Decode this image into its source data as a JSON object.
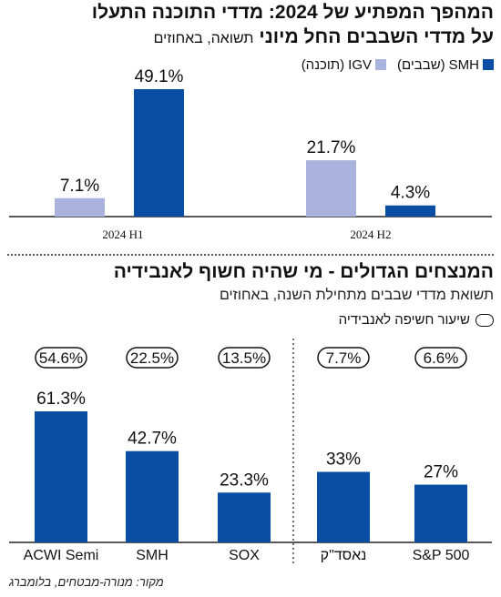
{
  "top": {
    "title": "המהפך המפתיע של 2024: מדדי התוכנה התעלו",
    "title2": "על מדדי השבבים החל מיוני",
    "subtitle": "תשואה, באחוזים",
    "legend": [
      {
        "name": "SMH",
        "note": "(שבבים)",
        "color": "#0a4ea3"
      },
      {
        "name": "IGV",
        "note": "(תוכנה)",
        "color": "#a9b3dd"
      }
    ]
  },
  "bottom": {
    "title": "המנצחים הגדולים - מי שהיה חשוף לאנבידיה",
    "subtitle": "תשואת מדדי שבבים מתחילת השנה, באחוזים",
    "benchmark_legend": "שיעור חשיפה לאנבידיה"
  },
  "source": "מקור: מנורה-מבטחים, בלומברג",
  "colors": {
    "smh": "#0a4ea3",
    "igv": "#a9b3dd",
    "axis": "#222222"
  },
  "chart_data": [
    {
      "type": "bar",
      "categories": [
        "2024 H1",
        "2024 H2"
      ],
      "series": [
        {
          "name": "IGV",
          "values": [
            7.1,
            21.7
          ],
          "labels": [
            "7.1%",
            "21.7%"
          ]
        },
        {
          "name": "SMH",
          "values": [
            49.1,
            4.3
          ],
          "labels": [
            "49.1%",
            "4.3%"
          ]
        }
      ],
      "ylim": [
        0,
        50
      ]
    },
    {
      "type": "bar",
      "categories": [
        "ACWI Semi",
        "SMH",
        "SOX",
        "נאסד\"ק",
        "S&P 500"
      ],
      "values": [
        61.3,
        42.7,
        23.3,
        33,
        27
      ],
      "labels": [
        "61.3%",
        "42.7%",
        "23.3%",
        "33%",
        "27%"
      ],
      "exposure": [
        "54.6%",
        "22.5%",
        "13.5%",
        "7.7%",
        "6.6%"
      ],
      "ylim": [
        0,
        62
      ]
    }
  ]
}
